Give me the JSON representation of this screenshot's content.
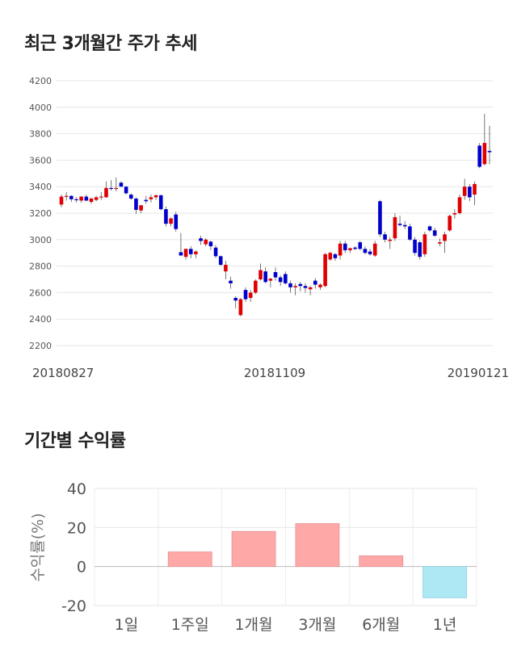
{
  "colors": {
    "up": "#e00000",
    "down": "#0000cc",
    "positive_bar": "#ffa8a8",
    "negative_bar": "#aee8f5",
    "grid": "#e6e6e6"
  },
  "section1": {
    "title": "최근 3개월간 주가 추세"
  },
  "section2": {
    "title": "기간별 수익률"
  },
  "chart_data": [
    {
      "type": "candlestick",
      "ylim": [
        2200,
        4200
      ],
      "yticks": [
        2200,
        2400,
        2600,
        2800,
        3000,
        3200,
        3400,
        3600,
        3800,
        4000,
        4200
      ],
      "date_labels": [
        "20180827",
        "20181109",
        "20190121"
      ],
      "grid": true,
      "candles": [
        {
          "o": 3265,
          "h": 3340,
          "l": 3245,
          "c": 3325
        },
        {
          "o": 3325,
          "h": 3360,
          "l": 3295,
          "c": 3330
        },
        {
          "o": 3330,
          "h": 3335,
          "l": 3285,
          "c": 3305
        },
        {
          "o": 3305,
          "h": 3320,
          "l": 3280,
          "c": 3300
        },
        {
          "o": 3295,
          "h": 3330,
          "l": 3280,
          "c": 3325
        },
        {
          "o": 3325,
          "h": 3340,
          "l": 3290,
          "c": 3295
        },
        {
          "o": 3285,
          "h": 3320,
          "l": 3270,
          "c": 3310
        },
        {
          "o": 3300,
          "h": 3330,
          "l": 3290,
          "c": 3320
        },
        {
          "o": 3320,
          "h": 3360,
          "l": 3300,
          "c": 3325
        },
        {
          "o": 3320,
          "h": 3440,
          "l": 3315,
          "c": 3390
        },
        {
          "o": 3390,
          "h": 3450,
          "l": 3370,
          "c": 3385
        },
        {
          "o": 3385,
          "h": 3470,
          "l": 3365,
          "c": 3390
        },
        {
          "o": 3430,
          "h": 3440,
          "l": 3400,
          "c": 3400
        },
        {
          "o": 3400,
          "h": 3405,
          "l": 3340,
          "c": 3350
        },
        {
          "o": 3340,
          "h": 3350,
          "l": 3300,
          "c": 3310
        },
        {
          "o": 3310,
          "h": 3320,
          "l": 3195,
          "c": 3225
        },
        {
          "o": 3220,
          "h": 3250,
          "l": 3200,
          "c": 3260
        },
        {
          "o": 3300,
          "h": 3330,
          "l": 3270,
          "c": 3290
        },
        {
          "o": 3305,
          "h": 3340,
          "l": 3280,
          "c": 3320
        },
        {
          "o": 3320,
          "h": 3340,
          "l": 3300,
          "c": 3335
        },
        {
          "o": 3335,
          "h": 3340,
          "l": 3220,
          "c": 3230
        },
        {
          "o": 3230,
          "h": 3250,
          "l": 3100,
          "c": 3120
        },
        {
          "o": 3120,
          "h": 3170,
          "l": 3100,
          "c": 3160
        },
        {
          "o": 3190,
          "h": 3210,
          "l": 3060,
          "c": 3080
        },
        {
          "o": 2905,
          "h": 3050,
          "l": 2880,
          "c": 2880
        },
        {
          "o": 2870,
          "h": 2930,
          "l": 2850,
          "c": 2930
        },
        {
          "o": 2930,
          "h": 2950,
          "l": 2860,
          "c": 2890
        },
        {
          "o": 2890,
          "h": 2920,
          "l": 2860,
          "c": 2910
        },
        {
          "o": 3010,
          "h": 3030,
          "l": 2960,
          "c": 2990
        },
        {
          "o": 2965,
          "h": 3010,
          "l": 2950,
          "c": 3000
        },
        {
          "o": 2985,
          "h": 2990,
          "l": 2920,
          "c": 2950
        },
        {
          "o": 2940,
          "h": 2960,
          "l": 2860,
          "c": 2875
        },
        {
          "o": 2875,
          "h": 2880,
          "l": 2800,
          "c": 2810
        },
        {
          "o": 2760,
          "h": 2840,
          "l": 2700,
          "c": 2810
        },
        {
          "o": 2690,
          "h": 2720,
          "l": 2630,
          "c": 2670
        },
        {
          "o": 2560,
          "h": 2570,
          "l": 2480,
          "c": 2540
        },
        {
          "o": 2430,
          "h": 2560,
          "l": 2420,
          "c": 2550
        },
        {
          "o": 2620,
          "h": 2640,
          "l": 2530,
          "c": 2550
        },
        {
          "o": 2560,
          "h": 2620,
          "l": 2530,
          "c": 2600
        },
        {
          "o": 2600,
          "h": 2700,
          "l": 2590,
          "c": 2690
        },
        {
          "o": 2700,
          "h": 2820,
          "l": 2690,
          "c": 2770
        },
        {
          "o": 2760,
          "h": 2790,
          "l": 2670,
          "c": 2680
        },
        {
          "o": 2690,
          "h": 2710,
          "l": 2640,
          "c": 2705
        },
        {
          "o": 2755,
          "h": 2790,
          "l": 2690,
          "c": 2715
        },
        {
          "o": 2715,
          "h": 2730,
          "l": 2650,
          "c": 2680
        },
        {
          "o": 2740,
          "h": 2760,
          "l": 2660,
          "c": 2670
        },
        {
          "o": 2670,
          "h": 2690,
          "l": 2600,
          "c": 2640
        },
        {
          "o": 2640,
          "h": 2670,
          "l": 2580,
          "c": 2650
        },
        {
          "o": 2665,
          "h": 2680,
          "l": 2610,
          "c": 2650
        },
        {
          "o": 2650,
          "h": 2670,
          "l": 2600,
          "c": 2635
        },
        {
          "o": 2625,
          "h": 2650,
          "l": 2580,
          "c": 2640
        },
        {
          "o": 2690,
          "h": 2710,
          "l": 2630,
          "c": 2660
        },
        {
          "o": 2640,
          "h": 2670,
          "l": 2620,
          "c": 2660
        },
        {
          "o": 2650,
          "h": 2900,
          "l": 2640,
          "c": 2890
        },
        {
          "o": 2850,
          "h": 2910,
          "l": 2840,
          "c": 2900
        },
        {
          "o": 2890,
          "h": 2900,
          "l": 2840,
          "c": 2860
        },
        {
          "o": 2880,
          "h": 2990,
          "l": 2850,
          "c": 2970
        },
        {
          "o": 2970,
          "h": 2990,
          "l": 2900,
          "c": 2920
        },
        {
          "o": 2920,
          "h": 2940,
          "l": 2900,
          "c": 2935
        },
        {
          "o": 2940,
          "h": 2950,
          "l": 2920,
          "c": 2930
        },
        {
          "o": 2980,
          "h": 2990,
          "l": 2920,
          "c": 2930
        },
        {
          "o": 2930,
          "h": 2950,
          "l": 2890,
          "c": 2900
        },
        {
          "o": 2910,
          "h": 2930,
          "l": 2880,
          "c": 2890
        },
        {
          "o": 2880,
          "h": 2990,
          "l": 2870,
          "c": 2970
        },
        {
          "o": 3290,
          "h": 3300,
          "l": 3020,
          "c": 3040
        },
        {
          "o": 3040,
          "h": 3060,
          "l": 2980,
          "c": 3000
        },
        {
          "o": 2990,
          "h": 3020,
          "l": 2930,
          "c": 3000
        },
        {
          "o": 3010,
          "h": 3200,
          "l": 2990,
          "c": 3170
        },
        {
          "o": 3120,
          "h": 3180,
          "l": 3100,
          "c": 3110
        },
        {
          "o": 3110,
          "h": 3140,
          "l": 3080,
          "c": 3100
        },
        {
          "o": 3100,
          "h": 3120,
          "l": 2990,
          "c": 3000
        },
        {
          "o": 3000,
          "h": 3020,
          "l": 2880,
          "c": 2900
        },
        {
          "o": 2980,
          "h": 2990,
          "l": 2850,
          "c": 2870
        },
        {
          "o": 2890,
          "h": 3060,
          "l": 2870,
          "c": 3040
        },
        {
          "o": 3100,
          "h": 3110,
          "l": 3060,
          "c": 3070
        },
        {
          "o": 3070,
          "h": 3090,
          "l": 3020,
          "c": 3030
        },
        {
          "o": 2970,
          "h": 3010,
          "l": 2950,
          "c": 2980
        },
        {
          "o": 2990,
          "h": 3060,
          "l": 2900,
          "c": 3040
        },
        {
          "o": 3070,
          "h": 3190,
          "l": 3060,
          "c": 3180
        },
        {
          "o": 3190,
          "h": 3230,
          "l": 3160,
          "c": 3200
        },
        {
          "o": 3200,
          "h": 3340,
          "l": 3190,
          "c": 3320
        },
        {
          "o": 3330,
          "h": 3460,
          "l": 3300,
          "c": 3400
        },
        {
          "o": 3400,
          "h": 3420,
          "l": 3290,
          "c": 3320
        },
        {
          "o": 3340,
          "h": 3440,
          "l": 3260,
          "c": 3420
        },
        {
          "o": 3710,
          "h": 3730,
          "l": 3540,
          "c": 3550
        },
        {
          "o": 3570,
          "h": 3950,
          "l": 3560,
          "c": 3730
        },
        {
          "o": 3670,
          "h": 3860,
          "l": 3570,
          "c": 3660
        }
      ]
    },
    {
      "type": "bar",
      "categories": [
        "1일",
        "1주일",
        "1개월",
        "3개월",
        "6개월",
        "1년"
      ],
      "values": [
        0,
        7.5,
        18,
        22,
        5.5,
        -16
      ],
      "ylabel": "수익률(%)",
      "ylim": [
        -20,
        40
      ],
      "yticks": [
        -20,
        0,
        20,
        40
      ],
      "grid": true
    }
  ]
}
